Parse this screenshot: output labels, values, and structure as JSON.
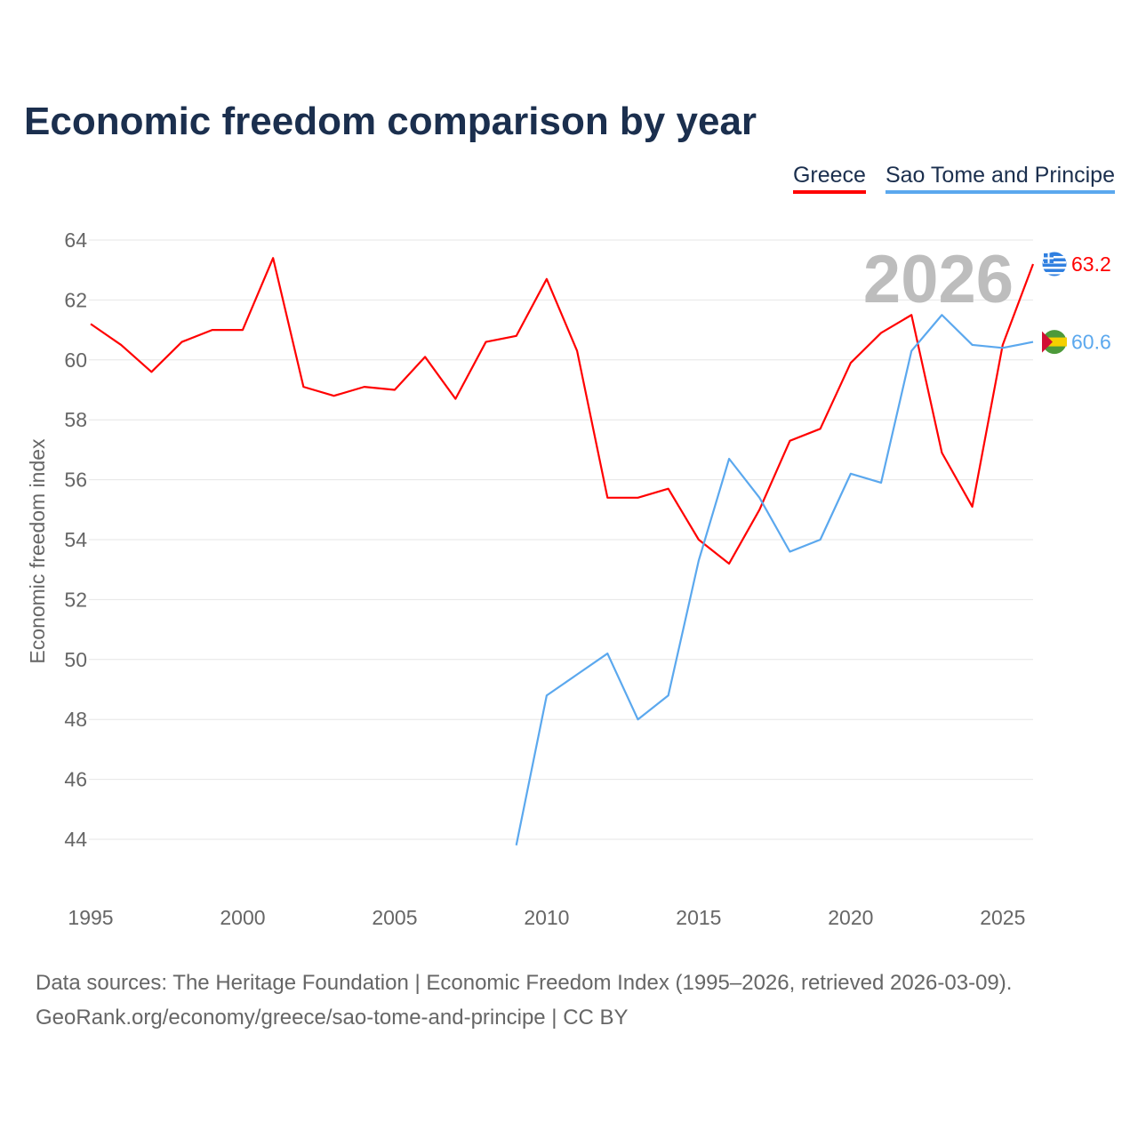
{
  "chart_data": {
    "type": "line",
    "title": "Economic freedom comparison by year",
    "xlabel": "",
    "ylabel": "Economic freedom index",
    "xlim": [
      1995,
      2026
    ],
    "ylim": [
      44,
      64
    ],
    "yticks": [
      44,
      46,
      48,
      50,
      52,
      54,
      56,
      58,
      60,
      62,
      64
    ],
    "xticks": [
      1995,
      2000,
      2005,
      2010,
      2015,
      2020,
      2025
    ],
    "grid": true,
    "legend_position": "top-right",
    "current_year_label": "2026",
    "series": [
      {
        "name": "Greece",
        "color": "#ff0000",
        "end_label": "63.2",
        "x": [
          1995,
          1996,
          1997,
          1998,
          1999,
          2000,
          2001,
          2002,
          2003,
          2004,
          2005,
          2006,
          2007,
          2008,
          2009,
          2010,
          2011,
          2012,
          2013,
          2014,
          2015,
          2016,
          2017,
          2018,
          2019,
          2020,
          2021,
          2022,
          2023,
          2024,
          2025,
          2026
        ],
        "values": [
          61.2,
          60.5,
          59.6,
          60.6,
          61.0,
          61.0,
          63.4,
          59.1,
          58.8,
          59.1,
          59.0,
          60.1,
          58.7,
          60.6,
          60.8,
          62.7,
          60.3,
          55.4,
          55.4,
          55.7,
          54.0,
          53.2,
          55.0,
          57.3,
          57.7,
          59.9,
          60.9,
          61.5,
          56.9,
          55.1,
          60.5,
          63.2
        ]
      },
      {
        "name": "Sao Tome and Principe",
        "color": "#5ba8ee",
        "end_label": "60.6",
        "x": [
          2009,
          2010,
          2011,
          2012,
          2013,
          2014,
          2015,
          2016,
          2017,
          2018,
          2019,
          2020,
          2021,
          2022,
          2023,
          2024,
          2025,
          2026
        ],
        "values": [
          43.8,
          48.8,
          49.5,
          50.2,
          48.0,
          48.8,
          53.3,
          56.7,
          55.4,
          53.6,
          54.0,
          56.2,
          55.9,
          60.3,
          61.5,
          60.5,
          60.4,
          60.6
        ]
      }
    ]
  },
  "footer": {
    "line1": "Data sources: The Heritage Foundation | Economic Freedom Index (1995–2026, retrieved 2026-03-09).",
    "line2": "GeoRank.org/economy/greece/sao-tome-and-principe | CC BY"
  }
}
